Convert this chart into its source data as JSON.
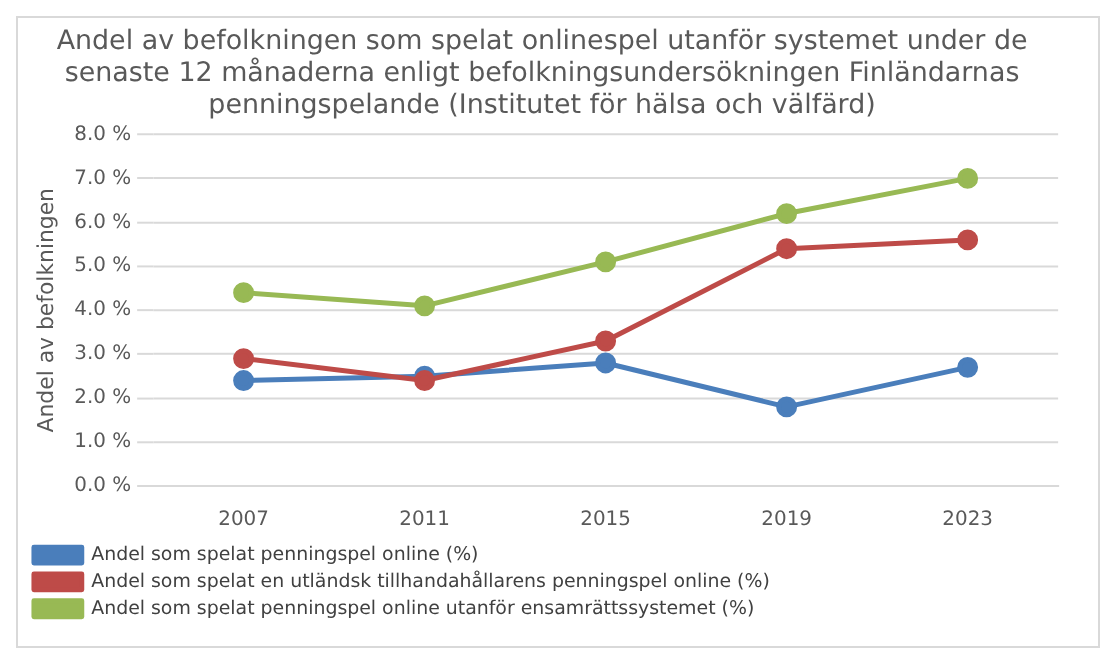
{
  "chart_data": {
    "type": "line",
    "title": "Andel av befolkningen som spelat onlinespel utanför systemet under de senaste 12 månaderna enligt befolkningsundersökningen Finländarnas penningspelande (Institutet för hälsa och välfärd)",
    "ylabel": "Andel av befolkningen",
    "categories": [
      "2007",
      "2011",
      "2015",
      "2019",
      "2023"
    ],
    "series": [
      {
        "name": "Andel som spelat penningspel online (%)",
        "color": "#4a7ebb",
        "values": [
          2.4,
          2.5,
          2.8,
          1.8,
          2.7
        ]
      },
      {
        "name": "Andel som spelat en utländsk tillhandahållarens penningspel online (%)",
        "color": "#be4b48",
        "values": [
          2.9,
          2.4,
          3.3,
          5.4,
          5.6
        ]
      },
      {
        "name": "Andel som spelat penningspel online utanför ensamrättssystemet (%)",
        "color": "#98b954",
        "values": [
          4.4,
          4.1,
          5.1,
          6.2,
          7.0
        ]
      }
    ],
    "ylim": [
      0,
      8
    ],
    "yticks": [
      {
        "value": 0,
        "label": "0.0 %"
      },
      {
        "value": 1,
        "label": "1.0 %"
      },
      {
        "value": 2,
        "label": "2.0 %"
      },
      {
        "value": 3,
        "label": "3.0 %"
      },
      {
        "value": 4,
        "label": "4.0 %"
      },
      {
        "value": 5,
        "label": "5.0 %"
      },
      {
        "value": 6,
        "label": "6.0 %"
      },
      {
        "value": 7,
        "label": "7.0 %"
      },
      {
        "value": 8,
        "label": "8.0 %"
      }
    ],
    "grid": "y",
    "legend": "bottom",
    "marker": "circle",
    "line_style": "solid"
  }
}
